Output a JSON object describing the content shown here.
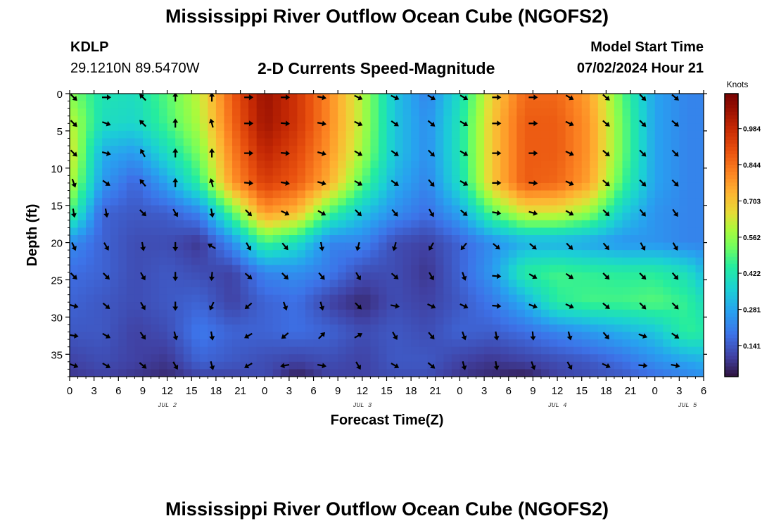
{
  "header": {
    "title": "Mississippi River Outflow Ocean Cube (NGOFS2)",
    "station": "KDLP",
    "coords": "29.1210N  89.5470W",
    "subtitle": "2-D Currents Speed-Magnitude",
    "model_label": "Model Start Time",
    "model_time": "07/02/2024 Hour 21"
  },
  "footer": {
    "title": "Mississippi River Outflow Ocean Cube (NGOFS2)"
  },
  "chart_data": {
    "type": "heatmap",
    "title": "2-D Currents Speed-Magnitude",
    "xlabel": "Forecast Time(Z)",
    "ylabel": "Depth (ft)",
    "xlim": [
      0,
      78
    ],
    "ylim": [
      38,
      0
    ],
    "x_ticks": [
      0,
      3,
      6,
      9,
      12,
      15,
      18,
      21,
      24,
      27,
      30,
      33,
      36,
      39,
      42,
      45,
      48,
      51,
      54,
      57,
      60,
      63,
      66,
      69,
      72,
      75,
      78
    ],
    "x_tick_labels": [
      "0",
      "3",
      "6",
      "9",
      "12",
      "15",
      "18",
      "21",
      "0",
      "3",
      "6",
      "9",
      "12",
      "15",
      "18",
      "21",
      "0",
      "3",
      "6",
      "9",
      "12",
      "15",
      "18",
      "21",
      "0",
      "3",
      "6"
    ],
    "y_ticks": [
      0,
      5,
      10,
      15,
      20,
      25,
      30,
      35
    ],
    "y_tick_labels": [
      "0",
      "5",
      "10",
      "15",
      "20",
      "25",
      "30",
      "35"
    ],
    "date_labels": [
      {
        "x": 12,
        "text": "JUL 2"
      },
      {
        "x": 36,
        "text": "JUL 3"
      },
      {
        "x": 60,
        "text": "JUL 4"
      },
      {
        "x": 76,
        "text": "JUL 5"
      }
    ],
    "colorbar": {
      "unit": "Knots",
      "min": 0.02,
      "max": 1.12,
      "ticks": [
        0.141,
        0.281,
        0.422,
        0.562,
        0.703,
        0.844,
        0.984
      ],
      "tick_labels": [
        "0.141",
        "0.281",
        "0.422",
        "0.562",
        "0.703",
        "0.844",
        "0.984"
      ]
    },
    "grid_times": [
      0,
      4,
      8,
      12,
      16,
      20,
      24,
      28,
      32,
      36,
      40,
      44,
      48,
      52,
      56,
      60,
      64,
      68,
      72,
      76,
      78
    ],
    "grid_depths": [
      0,
      4,
      8,
      12,
      16,
      20,
      24,
      28,
      32,
      36,
      38
    ],
    "speed_knots": [
      [
        0.55,
        0.42,
        0.4,
        0.5,
        0.62,
        0.88,
        1.06,
        0.96,
        0.8,
        0.6,
        0.34,
        0.22,
        0.4,
        0.68,
        0.86,
        0.86,
        0.76,
        0.5,
        0.28,
        0.22,
        0.22
      ],
      [
        0.62,
        0.4,
        0.38,
        0.48,
        0.6,
        0.86,
        1.05,
        0.96,
        0.8,
        0.6,
        0.34,
        0.24,
        0.42,
        0.7,
        0.88,
        0.88,
        0.78,
        0.52,
        0.28,
        0.22,
        0.22
      ],
      [
        0.66,
        0.3,
        0.26,
        0.4,
        0.54,
        0.82,
        1.0,
        0.92,
        0.78,
        0.58,
        0.34,
        0.24,
        0.42,
        0.7,
        0.88,
        0.88,
        0.78,
        0.52,
        0.28,
        0.22,
        0.22
      ],
      [
        0.62,
        0.26,
        0.16,
        0.28,
        0.46,
        0.78,
        0.94,
        0.88,
        0.74,
        0.5,
        0.3,
        0.22,
        0.4,
        0.7,
        0.88,
        0.86,
        0.76,
        0.48,
        0.28,
        0.22,
        0.22
      ],
      [
        0.5,
        0.16,
        0.14,
        0.15,
        0.22,
        0.5,
        0.78,
        0.72,
        0.48,
        0.34,
        0.24,
        0.18,
        0.28,
        0.5,
        0.64,
        0.64,
        0.56,
        0.36,
        0.25,
        0.22,
        0.22
      ],
      [
        0.24,
        0.16,
        0.12,
        0.12,
        0.08,
        0.24,
        0.48,
        0.4,
        0.22,
        0.22,
        0.12,
        0.1,
        0.16,
        0.24,
        0.3,
        0.3,
        0.28,
        0.25,
        0.25,
        0.22,
        0.22
      ],
      [
        0.18,
        0.16,
        0.12,
        0.14,
        0.12,
        0.1,
        0.22,
        0.24,
        0.2,
        0.12,
        0.12,
        0.08,
        0.16,
        0.26,
        0.45,
        0.48,
        0.46,
        0.45,
        0.45,
        0.4,
        0.32
      ],
      [
        0.16,
        0.14,
        0.12,
        0.14,
        0.16,
        0.1,
        0.16,
        0.18,
        0.1,
        0.06,
        0.12,
        0.1,
        0.14,
        0.2,
        0.3,
        0.45,
        0.48,
        0.48,
        0.5,
        0.46,
        0.4
      ],
      [
        0.14,
        0.14,
        0.1,
        0.12,
        0.2,
        0.16,
        0.16,
        0.18,
        0.16,
        0.12,
        0.14,
        0.12,
        0.16,
        0.15,
        0.18,
        0.22,
        0.26,
        0.3,
        0.34,
        0.46,
        0.44
      ],
      [
        0.1,
        0.12,
        0.1,
        0.08,
        0.16,
        0.14,
        0.12,
        0.1,
        0.12,
        0.1,
        0.14,
        0.14,
        0.1,
        0.08,
        0.1,
        0.12,
        0.14,
        0.18,
        0.24,
        0.28,
        0.3
      ],
      [
        0.08,
        0.1,
        0.08,
        0.06,
        0.1,
        0.1,
        0.12,
        0.04,
        0.1,
        0.1,
        0.12,
        0.12,
        0.08,
        0.06,
        0.04,
        0.1,
        0.12,
        0.14,
        0.18,
        0.22,
        0.24
      ]
    ],
    "vector_times": [
      0.5,
      4.5,
      9,
      13,
      17.5,
      22,
      26.5,
      31,
      35.5,
      40,
      44.5,
      48.5,
      52.5,
      57,
      61.5,
      66,
      70.5,
      74.5
    ],
    "vector_depths": [
      0.5,
      4,
      8,
      12,
      16,
      20.5,
      24.5,
      28.5,
      32.5,
      36.5
    ],
    "vector_directions_deg": [
      [
        135,
        90,
        315,
        0,
        0,
        90,
        90,
        100,
        115,
        115,
        120,
        120,
        90,
        90,
        120,
        130,
        135,
        130
      ],
      [
        135,
        110,
        315,
        0,
        345,
        90,
        95,
        100,
        115,
        125,
        130,
        120,
        90,
        90,
        115,
        130,
        135,
        130
      ],
      [
        135,
        105,
        330,
        0,
        0,
        90,
        95,
        105,
        120,
        125,
        135,
        120,
        90,
        90,
        115,
        130,
        135,
        135
      ],
      [
        160,
        125,
        320,
        0,
        345,
        95,
        100,
        105,
        120,
        125,
        140,
        120,
        90,
        95,
        115,
        130,
        135,
        135
      ],
      [
        170,
        170,
        135,
        150,
        170,
        135,
        115,
        120,
        135,
        140,
        150,
        130,
        100,
        105,
        120,
        135,
        140,
        145
      ],
      [
        155,
        150,
        170,
        180,
        300,
        150,
        140,
        170,
        195,
        195,
        210,
        220,
        130,
        130,
        135,
        140,
        150,
        150
      ],
      [
        135,
        135,
        150,
        180,
        185,
        130,
        135,
        140,
        150,
        130,
        150,
        160,
        95,
        120,
        125,
        135,
        135,
        140
      ],
      [
        105,
        130,
        150,
        180,
        205,
        230,
        160,
        165,
        135,
        100,
        115,
        115,
        95,
        110,
        115,
        130,
        135,
        135
      ],
      [
        100,
        120,
        145,
        165,
        170,
        240,
        230,
        45,
        60,
        150,
        140,
        160,
        170,
        175,
        165,
        140,
        110,
        125
      ],
      [
        110,
        120,
        130,
        150,
        165,
        240,
        260,
        100,
        150,
        120,
        130,
        165,
        170,
        160,
        150,
        115,
        95,
        100
      ]
    ]
  }
}
